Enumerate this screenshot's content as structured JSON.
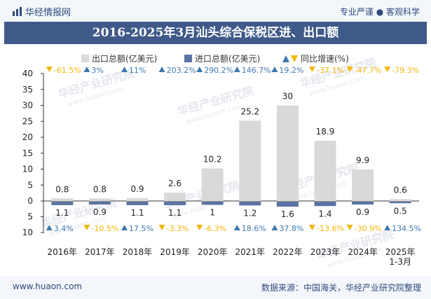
{
  "header": {
    "brand": "华经情报网",
    "tags": "专业严谨 ● 客观科学"
  },
  "title": "2016-2025年3月汕头综合保税区进、出口额",
  "legend": {
    "export": "出口总额(亿美元)",
    "import": "进口总额(亿美元)",
    "growth": "同比增速(%)"
  },
  "watermark": {
    "cn": "华经产业研究院",
    "url": "www.huaon.com"
  },
  "footer": {
    "site": "www.huaon.com",
    "source": "数据来源：中国海关，华经产业研究院整理"
  },
  "colors": {
    "export": "#d9d9d9",
    "import": "#5b73a3",
    "up": "#3f79ad",
    "down": "#f2b705",
    "title_bg": "#3f5989"
  },
  "chart_data": {
    "type": "bar",
    "categories": [
      "2016年",
      "2017年",
      "2018年",
      "2019年",
      "2020年",
      "2021年",
      "2022年",
      "2023年",
      "2024年",
      "2025年\n1-3月"
    ],
    "series": [
      {
        "name": "出口总额(亿美元)",
        "values": [
          0.8,
          0.8,
          0.9,
          2.6,
          10.2,
          25.2,
          30,
          18.9,
          9.9,
          0.6
        ]
      },
      {
        "name": "进口总额(亿美元)",
        "values": [
          1.1,
          0.9,
          1.1,
          1.1,
          1,
          1.2,
          1.6,
          1.4,
          0.9,
          0.5
        ]
      }
    ],
    "export_growth_labels": [
      "-61.5%",
      "3%",
      "11%",
      "203.2%",
      "290.2%",
      "146.7%",
      "19.2%",
      "-37.1%",
      "-47.7%",
      "-79.3%"
    ],
    "import_growth_labels": [
      "3.4%",
      "-10.5%",
      "17.5%",
      "-3.3%",
      "-6.3%",
      "18.6%",
      "37.8%",
      "-13.6%",
      "-30.9%",
      "134.5%"
    ],
    "y_ticks_top": [
      "40",
      "35",
      "30",
      "25",
      "20",
      "15",
      "10",
      "5",
      "0"
    ],
    "y_ticks_bottom": [
      "5",
      "10"
    ],
    "ylim_export": [
      0,
      40
    ],
    "ylim_import": [
      0,
      10
    ],
    "grid": false
  }
}
